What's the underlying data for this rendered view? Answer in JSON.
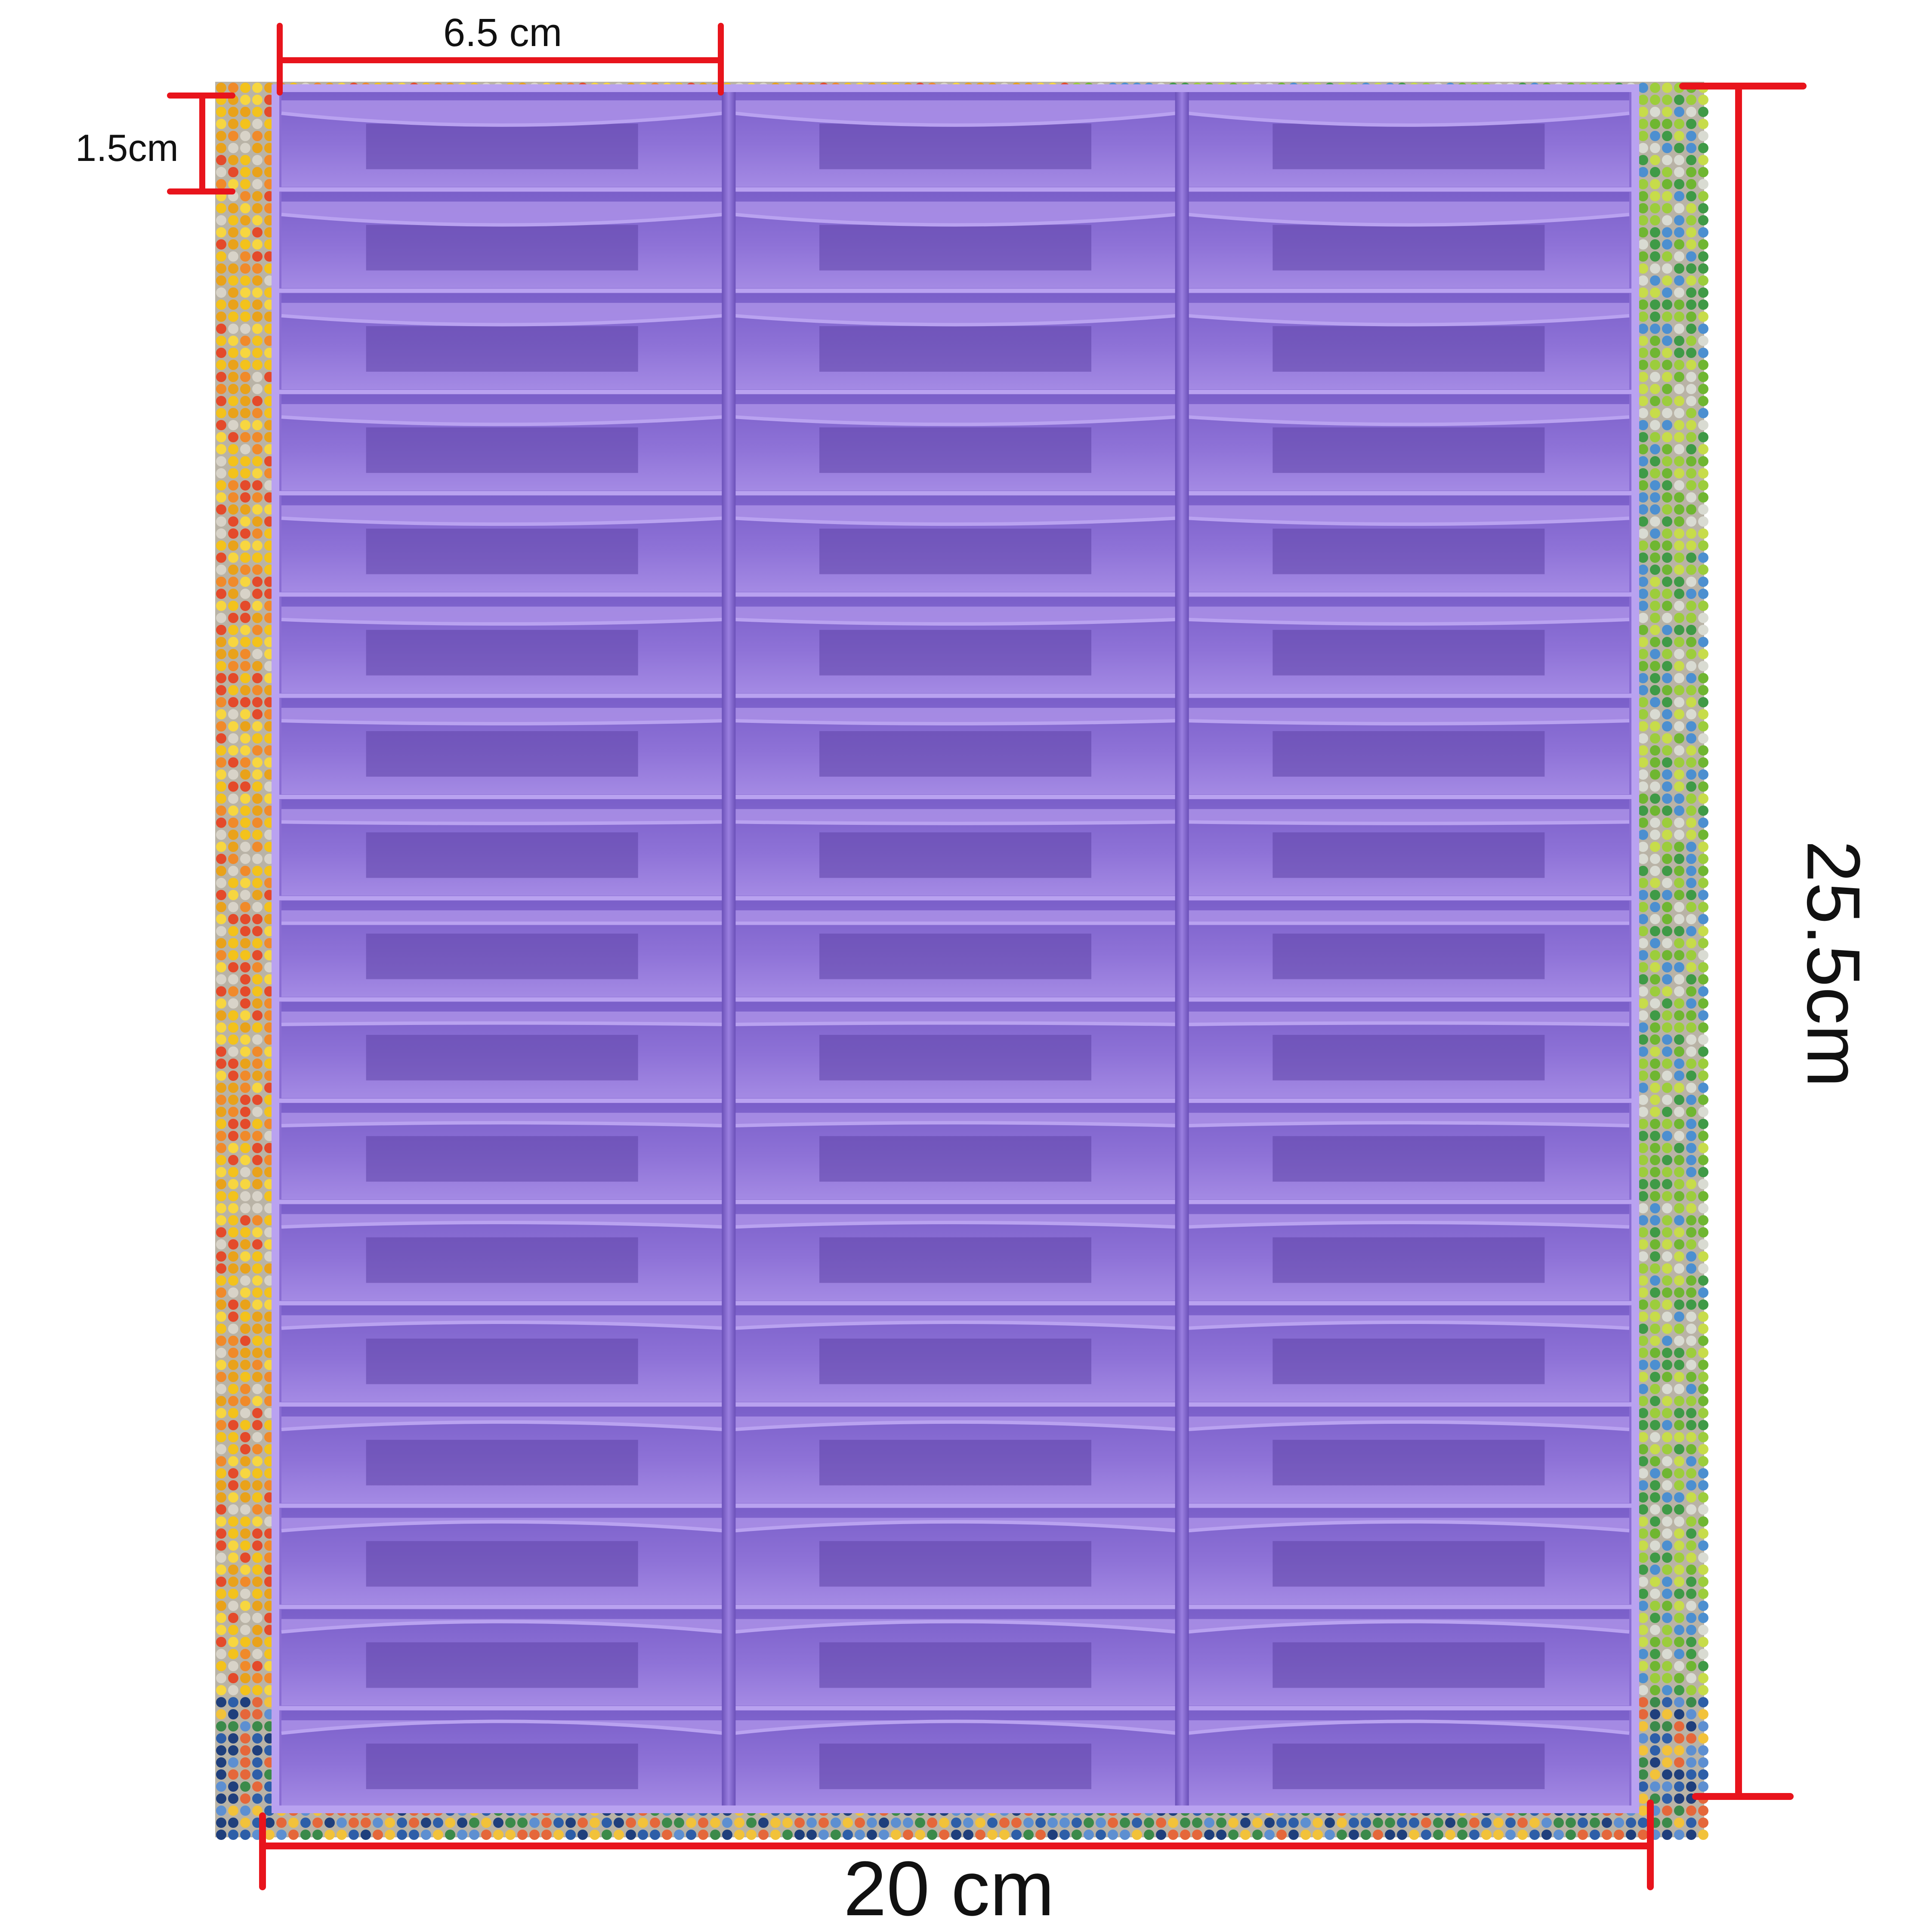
{
  "image": {
    "subject": "purple-organizer-tray",
    "background": "diamond-painting-canvas",
    "colors": {
      "tray_main": "#8f72d6",
      "tray_light": "#a98ee6",
      "tray_dark": "#5e44a8",
      "tray_edge": "#b9a2f0",
      "dimension_line": "#e8141c",
      "label_text": "#111111"
    },
    "tray": {
      "columns": 3,
      "rows": 17
    }
  },
  "dimensions": {
    "top_width": "6.5 cm",
    "slot_height": "1.5cm",
    "bottom_width": "20 cm",
    "right_height": "25.5cm"
  }
}
